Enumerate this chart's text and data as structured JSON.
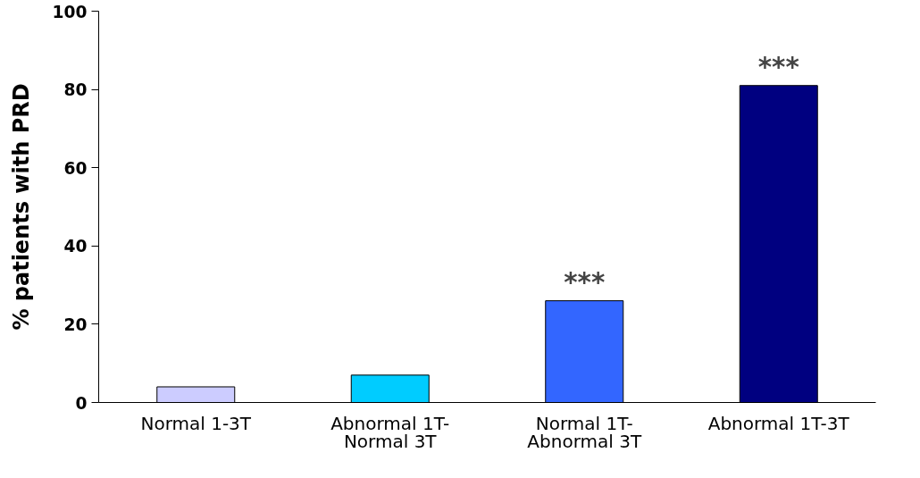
{
  "chart_data": {
    "type": "bar",
    "ylabel": "% patients with PRD",
    "categories": [
      "Normal 1-3T",
      "Abnormal 1T-\nNormal 3T",
      "Normal 1T-\nAbnormal 3T",
      "Abnormal 1T-3T"
    ],
    "values": [
      4,
      7,
      26,
      81
    ],
    "colors": [
      "#ccccff",
      "#00ccff",
      "#3366ff",
      "#000080"
    ],
    "ylim": [
      0,
      100
    ],
    "yticks": [
      0,
      20,
      40,
      60,
      80,
      100
    ],
    "grid": false,
    "annotations": [
      {
        "text": "***",
        "x": "Normal 1T-\nAbnormal 3T",
        "y": 26
      },
      {
        "text": "***",
        "x": "Abnormal 1T-3T",
        "y": 81
      }
    ]
  }
}
